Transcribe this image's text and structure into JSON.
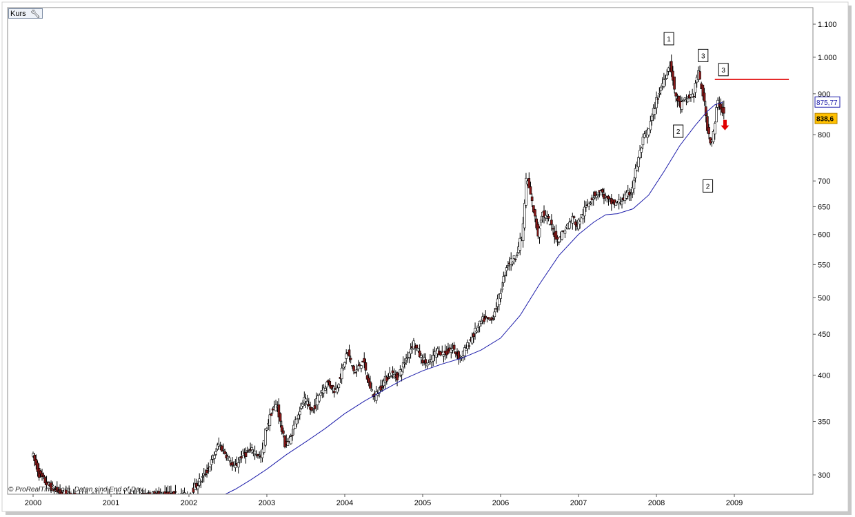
{
  "panel": {
    "tab_label": "Kurs",
    "settings_icon": "wrench-icon",
    "footer_text": "© ProRealTime.com. Daten sind End of Day"
  },
  "chart_data": {
    "type": "candlestick",
    "scale": "log",
    "ylim": [
      280,
      1130
    ],
    "xlim": [
      1999.97,
      2009.9
    ],
    "y_ticks": [
      {
        "value": 1100,
        "label": "1.100"
      },
      {
        "value": 1000,
        "label": "1.000"
      },
      {
        "value": 900,
        "label": "900"
      },
      {
        "value": 800,
        "label": "800"
      },
      {
        "value": 700,
        "label": "700"
      },
      {
        "value": 650,
        "label": "650"
      },
      {
        "value": 600,
        "label": "600"
      },
      {
        "value": 550,
        "label": "550"
      },
      {
        "value": 500,
        "label": "500"
      },
      {
        "value": 450,
        "label": "450"
      },
      {
        "value": 400,
        "label": "400"
      },
      {
        "value": 350,
        "label": "350"
      },
      {
        "value": 300,
        "label": "300"
      }
    ],
    "x_ticks": [
      {
        "value": 2000,
        "label": "2000"
      },
      {
        "value": 2001,
        "label": "2001"
      },
      {
        "value": 2002,
        "label": "2002"
      },
      {
        "value": 2003,
        "label": "2003"
      },
      {
        "value": 2004,
        "label": "2004"
      },
      {
        "value": 2005,
        "label": "2005"
      },
      {
        "value": 2006,
        "label": "2006"
      },
      {
        "value": 2007,
        "label": "2007"
      },
      {
        "value": 2008,
        "label": "2008"
      },
      {
        "value": 2009,
        "label": "2009"
      }
    ],
    "price_path": [
      [
        2000.0,
        320
      ],
      [
        2000.1,
        300
      ],
      [
        2000.2,
        292
      ],
      [
        2000.35,
        285
      ],
      [
        2000.5,
        283
      ],
      [
        2000.7,
        280
      ],
      [
        2001.4,
        282
      ],
      [
        2001.7,
        284
      ],
      [
        2002.0,
        282
      ],
      [
        2002.1,
        290
      ],
      [
        2002.2,
        298
      ],
      [
        2002.3,
        310
      ],
      [
        2002.4,
        328
      ],
      [
        2002.5,
        318
      ],
      [
        2002.6,
        305
      ],
      [
        2002.7,
        318
      ],
      [
        2002.85,
        322
      ],
      [
        2002.95,
        315
      ],
      [
        2003.0,
        340
      ],
      [
        2003.08,
        360
      ],
      [
        2003.15,
        368
      ],
      [
        2003.2,
        345
      ],
      [
        2003.25,
        328
      ],
      [
        2003.32,
        332
      ],
      [
        2003.4,
        355
      ],
      [
        2003.5,
        372
      ],
      [
        2003.6,
        360
      ],
      [
        2003.7,
        380
      ],
      [
        2003.8,
        392
      ],
      [
        2003.9,
        382
      ],
      [
        2004.0,
        410
      ],
      [
        2004.05,
        428
      ],
      [
        2004.15,
        402
      ],
      [
        2004.25,
        418
      ],
      [
        2004.32,
        392
      ],
      [
        2004.4,
        375
      ],
      [
        2004.5,
        390
      ],
      [
        2004.6,
        402
      ],
      [
        2004.7,
        398
      ],
      [
        2004.8,
        418
      ],
      [
        2004.9,
        440
      ],
      [
        2005.0,
        420
      ],
      [
        2005.1,
        412
      ],
      [
        2005.2,
        430
      ],
      [
        2005.3,
        425
      ],
      [
        2005.4,
        432
      ],
      [
        2005.5,
        420
      ],
      [
        2005.6,
        436
      ],
      [
        2005.7,
        455
      ],
      [
        2005.8,
        470
      ],
      [
        2005.9,
        468
      ],
      [
        2006.0,
        500
      ],
      [
        2006.1,
        550
      ],
      [
        2006.2,
        560
      ],
      [
        2006.3,
        600
      ],
      [
        2006.35,
        710
      ],
      [
        2006.42,
        660
      ],
      [
        2006.5,
        600
      ],
      [
        2006.55,
        640
      ],
      [
        2006.65,
        620
      ],
      [
        2006.75,
        590
      ],
      [
        2006.85,
        610
      ],
      [
        2006.95,
        630
      ],
      [
        2007.0,
        615
      ],
      [
        2007.1,
        645
      ],
      [
        2007.2,
        670
      ],
      [
        2007.3,
        680
      ],
      [
        2007.4,
        660
      ],
      [
        2007.5,
        655
      ],
      [
        2007.6,
        665
      ],
      [
        2007.7,
        680
      ],
      [
        2007.75,
        720
      ],
      [
        2007.85,
        790
      ],
      [
        2007.92,
        810
      ],
      [
        2008.0,
        870
      ],
      [
        2008.1,
        930
      ],
      [
        2008.2,
        985
      ],
      [
        2008.25,
        905
      ],
      [
        2008.32,
        868
      ],
      [
        2008.4,
        885
      ],
      [
        2008.5,
        900
      ],
      [
        2008.55,
        960
      ],
      [
        2008.62,
        895
      ],
      [
        2008.67,
        820
      ],
      [
        2008.72,
        780
      ],
      [
        2008.76,
        810
      ],
      [
        2008.8,
        880
      ],
      [
        2008.84,
        870
      ],
      [
        2008.88,
        850
      ]
    ],
    "moving_average": [
      [
        2002.35,
        280
      ],
      [
        2002.6,
        288
      ],
      [
        2002.8,
        296
      ],
      [
        2003.0,
        305
      ],
      [
        2003.25,
        318
      ],
      [
        2003.5,
        330
      ],
      [
        2003.75,
        343
      ],
      [
        2004.0,
        358
      ],
      [
        2004.25,
        371
      ],
      [
        2004.5,
        383
      ],
      [
        2004.75,
        395
      ],
      [
        2005.0,
        405
      ],
      [
        2005.25,
        413
      ],
      [
        2005.5,
        420
      ],
      [
        2005.75,
        430
      ],
      [
        2006.0,
        445
      ],
      [
        2006.25,
        475
      ],
      [
        2006.5,
        520
      ],
      [
        2006.75,
        565
      ],
      [
        2007.0,
        600
      ],
      [
        2007.2,
        622
      ],
      [
        2007.35,
        635
      ],
      [
        2007.5,
        637
      ],
      [
        2007.7,
        646
      ],
      [
        2007.9,
        672
      ],
      [
        2008.1,
        720
      ],
      [
        2008.3,
        775
      ],
      [
        2008.5,
        822
      ],
      [
        2008.65,
        855
      ],
      [
        2008.75,
        872
      ],
      [
        2008.85,
        878
      ]
    ],
    "moving_average_value": "875,77",
    "last_price": "838,6",
    "resistance": {
      "price": 938,
      "from_x": 2008.75,
      "to_x": 2009.7
    },
    "wave_labels": [
      {
        "label": "1",
        "x": 2008.16,
        "y": 1055,
        "color": "#000000"
      },
      {
        "label": "3",
        "x": 2008.6,
        "y": 1005,
        "color": "#000000"
      },
      {
        "label": "3",
        "x": 2008.86,
        "y": 965,
        "color": "#000000"
      },
      {
        "label": "2",
        "x": 2008.28,
        "y": 808,
        "color": "#000000"
      },
      {
        "label": "2",
        "x": 2008.66,
        "y": 690,
        "color": "#000000"
      }
    ],
    "down_arrow": {
      "x": 2008.88,
      "y": 815,
      "color": "#e00000"
    },
    "colors": {
      "up_candle": "#ffffff",
      "down_candle": "#8b1a1a",
      "wick": "#000000",
      "moving_average": "#1c1caa",
      "resistance": "#e00000",
      "ma_badge_border": "#1c1caa",
      "last_badge_fill": "#ffc000"
    }
  }
}
